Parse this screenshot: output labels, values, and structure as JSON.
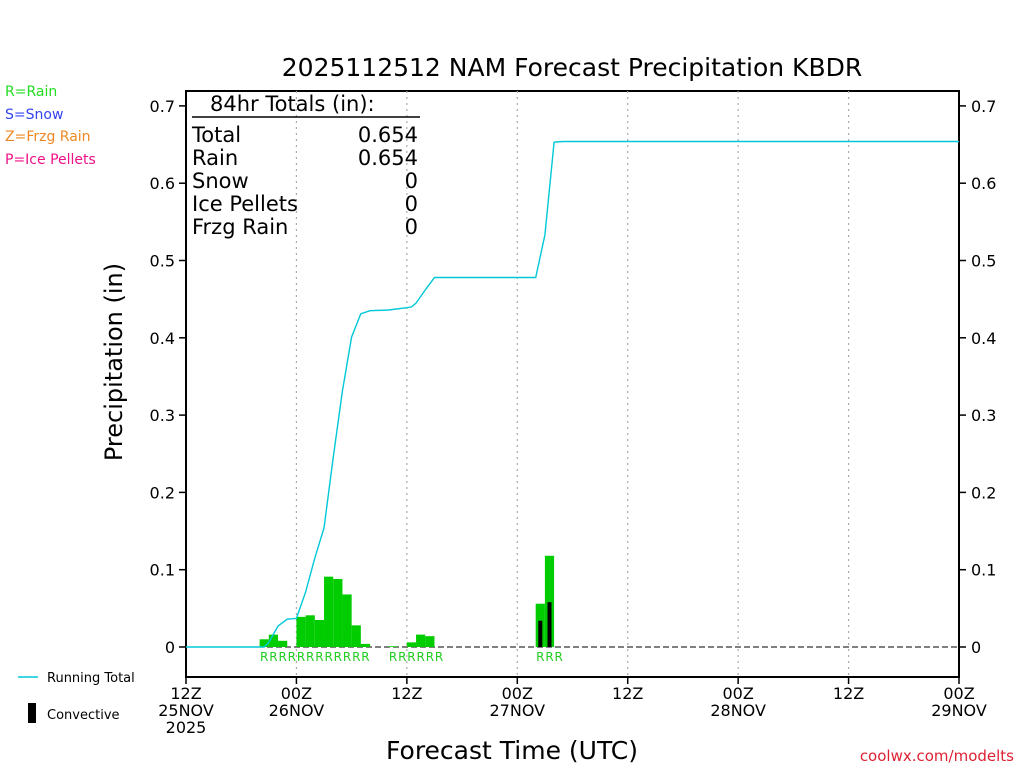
{
  "chart_data": {
    "type": "bar",
    "title": "2025112512 NAM Forecast Precipitation KBDR",
    "xlabel": "Forecast Time (UTC)",
    "ylabel": "Precipitation (in)",
    "ylim": [
      -0.04,
      0.72
    ],
    "y_ticks": [
      0,
      0.1,
      0.2,
      0.3,
      0.4,
      0.5,
      0.6,
      0.7
    ],
    "y_tick_labels": [
      "0",
      "0.1",
      "0.2",
      "0.3",
      "0.4",
      "0.5",
      "0.6",
      "0.7"
    ],
    "x_range_hours": [
      0,
      84
    ],
    "x_ticks": [
      {
        "hour": 0,
        "line1": "12Z",
        "line2": "25NOV",
        "line3": "2025"
      },
      {
        "hour": 12,
        "line1": "00Z",
        "line2": "26NOV",
        "line3": ""
      },
      {
        "hour": 24,
        "line1": "12Z",
        "line2": "",
        "line3": ""
      },
      {
        "hour": 36,
        "line1": "00Z",
        "line2": "27NOV",
        "line3": ""
      },
      {
        "hour": 48,
        "line1": "12Z",
        "line2": "",
        "line3": ""
      },
      {
        "hour": 60,
        "line1": "00Z",
        "line2": "28NOV",
        "line3": ""
      },
      {
        "hour": 72,
        "line1": "12Z",
        "line2": "",
        "line3": ""
      },
      {
        "hour": 84,
        "line1": "00Z",
        "line2": "29NOV",
        "line3": ""
      }
    ],
    "hourly_precip": [
      {
        "hour": 9,
        "value": 0.01,
        "type": "R"
      },
      {
        "hour": 10,
        "value": 0.016,
        "type": "R"
      },
      {
        "hour": 11,
        "value": 0.008,
        "type": "R"
      },
      {
        "hour": 13,
        "value": 0.039,
        "type": "R"
      },
      {
        "hour": 14,
        "value": 0.041,
        "type": "R"
      },
      {
        "hour": 15,
        "value": 0.035,
        "type": "R"
      },
      {
        "hour": 16,
        "value": 0.091,
        "type": "R"
      },
      {
        "hour": 17,
        "value": 0.088,
        "type": "R"
      },
      {
        "hour": 18,
        "value": 0.068,
        "type": "R"
      },
      {
        "hour": 19,
        "value": 0.028,
        "type": "R"
      },
      {
        "hour": 20,
        "value": 0.004,
        "type": "R"
      },
      {
        "hour": 23,
        "value": 0.001,
        "type": "R"
      },
      {
        "hour": 25,
        "value": 0.006,
        "type": "R"
      },
      {
        "hour": 26,
        "value": 0.016,
        "type": "R"
      },
      {
        "hour": 27,
        "value": 0.014,
        "type": "R"
      },
      {
        "hour": 39,
        "value": 0.056,
        "type": "R"
      },
      {
        "hour": 40,
        "value": 0.118,
        "type": "R"
      }
    ],
    "convective": [
      {
        "hour": 39,
        "value": 0.034
      },
      {
        "hour": 40,
        "value": 0.058
      }
    ],
    "running_total": [
      [
        0,
        0
      ],
      [
        8.5,
        0
      ],
      [
        9,
        0.006
      ],
      [
        10,
        0.027
      ],
      [
        11,
        0.036
      ],
      [
        12,
        0.037
      ],
      [
        13,
        0.071
      ],
      [
        14,
        0.115
      ],
      [
        15,
        0.154
      ],
      [
        16,
        0.245
      ],
      [
        17,
        0.331
      ],
      [
        18,
        0.401
      ],
      [
        19,
        0.431
      ],
      [
        20,
        0.435
      ],
      [
        22,
        0.436
      ],
      [
        24,
        0.439
      ],
      [
        24.5,
        0.44
      ],
      [
        25,
        0.445
      ],
      [
        26,
        0.462
      ],
      [
        27,
        0.478
      ],
      [
        38,
        0.478
      ],
      [
        39,
        0.533
      ],
      [
        40,
        0.653
      ],
      [
        41,
        0.654
      ],
      [
        84,
        0.654
      ]
    ],
    "rain_marker_hours": [
      9,
      10,
      11,
      12,
      13,
      14,
      15,
      16,
      17,
      18,
      19,
      20,
      23,
      24,
      25,
      26,
      27,
      28,
      39,
      40,
      41
    ],
    "rain_marker_letter": "R",
    "colors": {
      "rain": "#00cc00",
      "convective": "#000000",
      "running_total": "#00c8d8",
      "gridline": "#aaaaaa",
      "marker_text": "#22cc22"
    }
  },
  "legend": {
    "rain": "R=Rain",
    "snow": "S=Snow",
    "frzg_rain": "Z=Frzg Rain",
    "ice_pellets": "P=Ice Pellets",
    "rain_color": "#22dd22",
    "snow_color": "#3344ee",
    "frzg_color": "#ee8822",
    "ice_color": "#ee1188",
    "running_total": "Running Total",
    "convective": "Convective"
  },
  "totals": {
    "header": "84hr Totals (in):",
    "rows": [
      {
        "label": "Total",
        "value": "0.654"
      },
      {
        "label": "Rain",
        "value": "0.654"
      },
      {
        "label": "Snow",
        "value": "0"
      },
      {
        "label": "Ice Pellets",
        "value": "0"
      },
      {
        "label": "Frzg Rain",
        "value": "0"
      }
    ]
  },
  "credit": "coolwx.com/modelts"
}
